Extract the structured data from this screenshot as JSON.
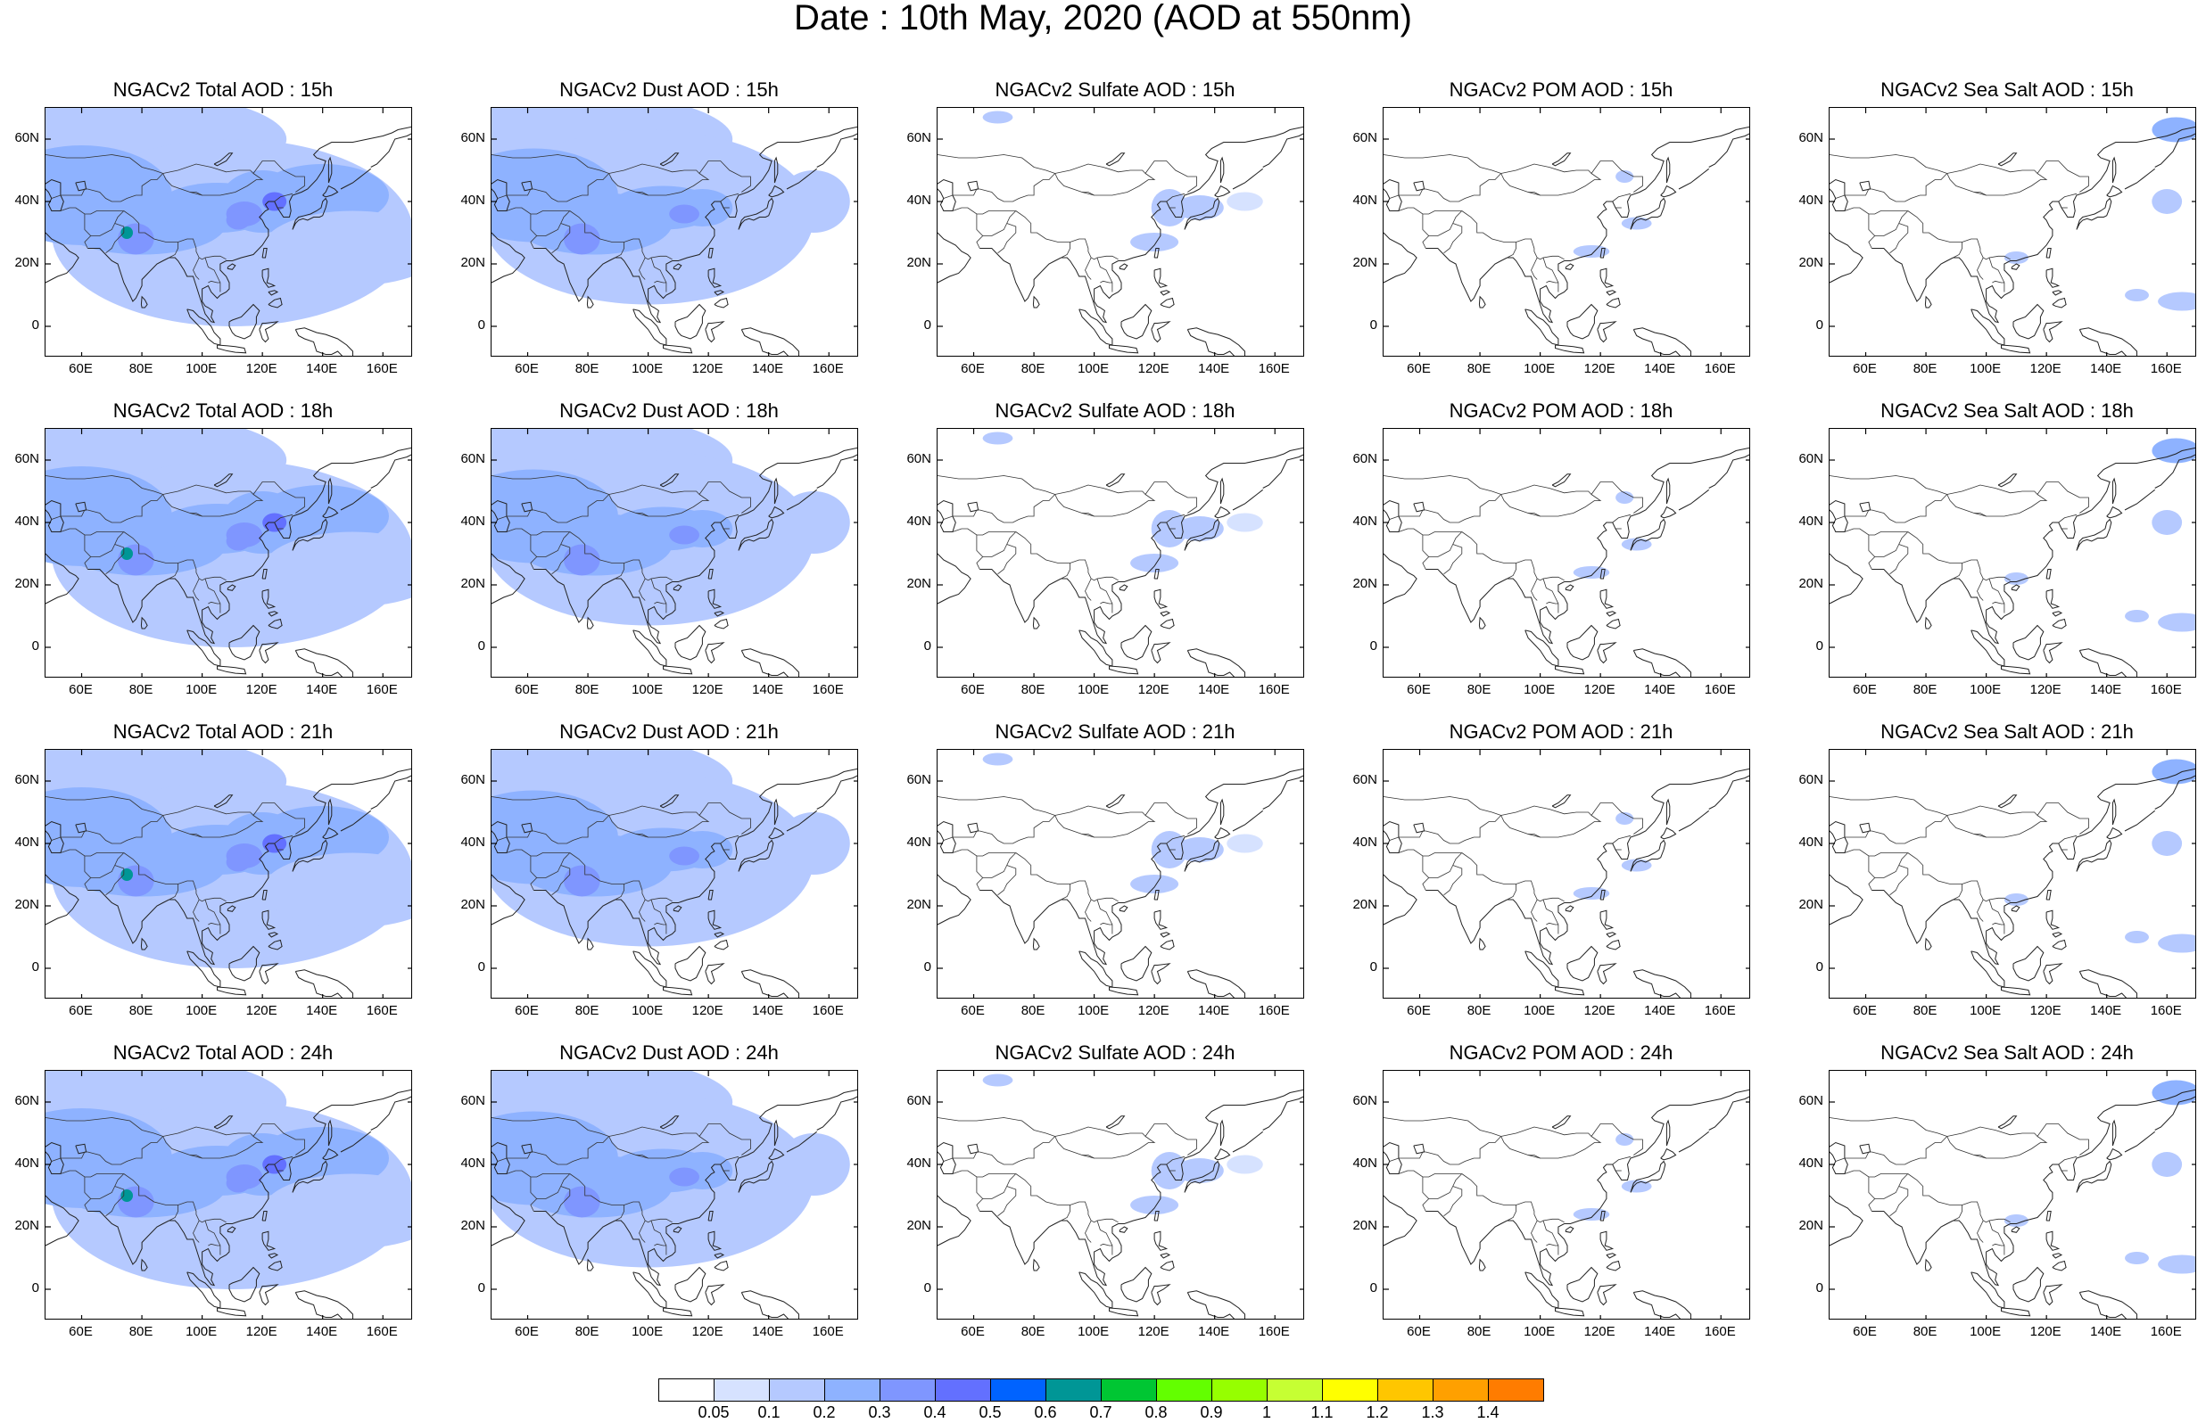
{
  "title": "Date : 10th May, 2020 (AOD at 550nm)",
  "lat_ticks": [
    "60N",
    "40N",
    "20N",
    "0"
  ],
  "lon_ticks": [
    "60E",
    "80E",
    "100E",
    "120E",
    "140E",
    "160E"
  ],
  "panels": [
    [
      "NGACv2 Total AOD : 15h",
      "NGACv2 Dust AOD : 15h",
      "NGACv2 Sulfate AOD : 15h",
      "NGACv2 POM AOD : 15h",
      "NGACv2 Sea Salt AOD : 15h"
    ],
    [
      "NGACv2 Total AOD : 18h",
      "NGACv2 Dust AOD : 18h",
      "NGACv2 Sulfate AOD : 18h",
      "NGACv2 POM AOD : 18h",
      "NGACv2 Sea Salt AOD : 18h"
    ],
    [
      "NGACv2 Total AOD : 21h",
      "NGACv2 Dust AOD : 21h",
      "NGACv2 Sulfate AOD : 21h",
      "NGACv2 POM AOD : 21h",
      "NGACv2 Sea Salt AOD : 21h"
    ],
    [
      "NGACv2 Total AOD : 24h",
      "NGACv2 Dust AOD : 24h",
      "NGACv2 Sulfate AOD : 24h",
      "NGACv2 POM AOD : 24h",
      "NGACv2 Sea Salt  AOD : 24h"
    ]
  ],
  "colorbar": {
    "labels": [
      "0.05",
      "0.1",
      "0.2",
      "0.3",
      "0.4",
      "0.5",
      "0.6",
      "0.7",
      "0.8",
      "0.9",
      "1",
      "1.1",
      "1.2",
      "1.3",
      "1.4"
    ],
    "colors": [
      "#ffffff",
      "#d6e2ff",
      "#b5c9ff",
      "#8eb2ff",
      "#7f96ff",
      "#6370ff",
      "#0063ff",
      "#009696",
      "#00c633",
      "#63ff00",
      "#96ff00",
      "#c6ff33",
      "#ffff00",
      "#ffc600",
      "#ffa000",
      "#ff7c00",
      "#ff1900"
    ]
  }
}
